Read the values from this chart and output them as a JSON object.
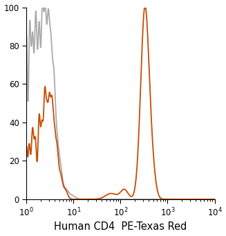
{
  "title": "",
  "xlabel": "Human CD4  PE-Texas Red",
  "ylabel": "",
  "xlim_log": [
    1,
    10000
  ],
  "ylim": [
    0,
    100
  ],
  "yticks": [
    0,
    20,
    40,
    60,
    80,
    100
  ],
  "orange_color": "#C84B00",
  "gray_color": "#AAAAAA",
  "linewidth": 1.3,
  "xlabel_fontsize": 10.5,
  "tick_fontsize": 8.5,
  "background_color": "#ffffff"
}
